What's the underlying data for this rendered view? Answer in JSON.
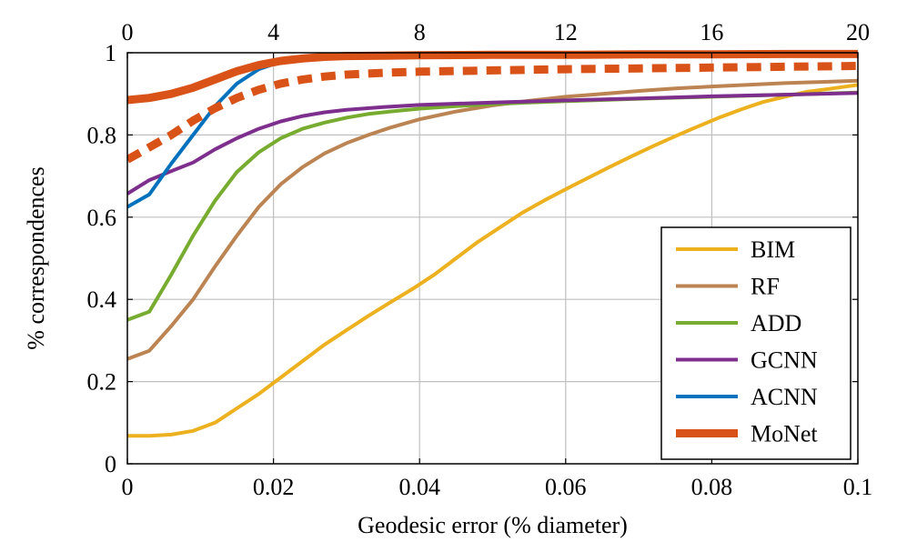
{
  "chart_data": {
    "type": "line",
    "title": "",
    "xlabel": "Geodesic error (% diameter)",
    "ylabel": "% correspondences",
    "xlim": [
      0,
      0.1
    ],
    "ylim": [
      0,
      1
    ],
    "grid": true,
    "x_ticks": [
      "0",
      "0.02",
      "0.04",
      "0.06",
      "0.08",
      "0.1"
    ],
    "x_tick_values": [
      0,
      0.02,
      0.04,
      0.06,
      0.08,
      0.1
    ],
    "top_x_ticks": [
      "0",
      "4",
      "8",
      "12",
      "16",
      "20"
    ],
    "y_ticks": [
      "0",
      "0.2",
      "0.4",
      "0.6",
      "0.8",
      "1"
    ],
    "y_tick_values": [
      0,
      0.2,
      0.4,
      0.6,
      0.8,
      1
    ],
    "legend_position": "bottom-right",
    "series": [
      {
        "name": "BIM",
        "color": "#edb120",
        "x": [
          0,
          0.003,
          0.006,
          0.009,
          0.012,
          0.015,
          0.018,
          0.021,
          0.024,
          0.027,
          0.03,
          0.033,
          0.036,
          0.039,
          0.042,
          0.045,
          0.048,
          0.051,
          0.054,
          0.057,
          0.06,
          0.063,
          0.066,
          0.069,
          0.072,
          0.075,
          0.078,
          0.081,
          0.084,
          0.087,
          0.09,
          0.093,
          0.096,
          0.1
        ],
        "y": [
          0.068,
          0.068,
          0.071,
          0.08,
          0.1,
          0.135,
          0.17,
          0.21,
          0.25,
          0.29,
          0.325,
          0.36,
          0.393,
          0.425,
          0.46,
          0.5,
          0.54,
          0.575,
          0.61,
          0.64,
          0.668,
          0.695,
          0.722,
          0.748,
          0.773,
          0.797,
          0.82,
          0.842,
          0.862,
          0.88,
          0.893,
          0.905,
          0.912,
          0.922
        ]
      },
      {
        "name": "RF",
        "color": "#bb8452",
        "x": [
          0,
          0.003,
          0.006,
          0.009,
          0.012,
          0.015,
          0.018,
          0.021,
          0.024,
          0.027,
          0.03,
          0.033,
          0.036,
          0.04,
          0.045,
          0.05,
          0.055,
          0.06,
          0.065,
          0.07,
          0.075,
          0.08,
          0.085,
          0.09,
          0.095,
          0.1
        ],
        "y": [
          0.255,
          0.275,
          0.335,
          0.4,
          0.48,
          0.555,
          0.625,
          0.68,
          0.722,
          0.755,
          0.78,
          0.8,
          0.818,
          0.838,
          0.857,
          0.872,
          0.883,
          0.893,
          0.9,
          0.907,
          0.913,
          0.918,
          0.922,
          0.926,
          0.929,
          0.932
        ]
      },
      {
        "name": "ADD",
        "color": "#77ac30",
        "x": [
          0,
          0.003,
          0.006,
          0.009,
          0.012,
          0.015,
          0.018,
          0.021,
          0.024,
          0.027,
          0.03,
          0.033,
          0.036,
          0.04,
          0.045,
          0.05,
          0.055,
          0.06,
          0.07,
          0.08,
          0.09,
          0.1
        ],
        "y": [
          0.35,
          0.37,
          0.46,
          0.555,
          0.64,
          0.71,
          0.758,
          0.792,
          0.815,
          0.83,
          0.842,
          0.851,
          0.857,
          0.864,
          0.87,
          0.875,
          0.879,
          0.882,
          0.888,
          0.893,
          0.898,
          0.903
        ]
      },
      {
        "name": "GCNN",
        "color": "#7e2f8e",
        "x": [
          0,
          0.003,
          0.006,
          0.009,
          0.012,
          0.015,
          0.018,
          0.021,
          0.024,
          0.027,
          0.03,
          0.035,
          0.04,
          0.05,
          0.06,
          0.07,
          0.08,
          0.09,
          0.1
        ],
        "y": [
          0.657,
          0.69,
          0.712,
          0.733,
          0.765,
          0.792,
          0.815,
          0.833,
          0.846,
          0.855,
          0.861,
          0.868,
          0.873,
          0.879,
          0.884,
          0.889,
          0.894,
          0.898,
          0.902
        ]
      },
      {
        "name": "ACNN",
        "color": "#0072bd",
        "x": [
          0,
          0.003,
          0.006,
          0.009,
          0.012,
          0.015,
          0.018,
          0.021,
          0.024,
          0.027,
          0.03,
          0.035,
          0.04,
          0.05,
          0.06,
          0.07,
          0.08,
          0.09,
          0.1
        ],
        "y": [
          0.625,
          0.655,
          0.73,
          0.8,
          0.87,
          0.925,
          0.96,
          0.978,
          0.985,
          0.988,
          0.99,
          0.991,
          0.992,
          0.993,
          0.994,
          0.995,
          0.996,
          0.997,
          0.998
        ]
      },
      {
        "name": "MoNet",
        "color": "#d95319",
        "x": [
          0,
          0.003,
          0.006,
          0.009,
          0.012,
          0.015,
          0.018,
          0.021,
          0.024,
          0.027,
          0.03,
          0.035,
          0.04,
          0.05,
          0.06,
          0.07,
          0.08,
          0.09,
          0.1
        ],
        "y": [
          0.885,
          0.89,
          0.9,
          0.915,
          0.935,
          0.955,
          0.97,
          0.98,
          0.986,
          0.99,
          0.992,
          0.993,
          0.994,
          0.995,
          0.995,
          0.996,
          0.996,
          0.997,
          0.997
        ]
      },
      {
        "name": "MoNet (dashed)",
        "color": "#d95319",
        "dashed": true,
        "legend": false,
        "x": [
          0,
          0.003,
          0.006,
          0.009,
          0.012,
          0.015,
          0.018,
          0.021,
          0.024,
          0.027,
          0.03,
          0.035,
          0.04,
          0.05,
          0.06,
          0.07,
          0.08,
          0.09,
          0.1
        ],
        "y": [
          0.74,
          0.77,
          0.8,
          0.835,
          0.865,
          0.89,
          0.91,
          0.925,
          0.935,
          0.942,
          0.947,
          0.951,
          0.954,
          0.957,
          0.96,
          0.962,
          0.964,
          0.966,
          0.968
        ]
      }
    ]
  }
}
